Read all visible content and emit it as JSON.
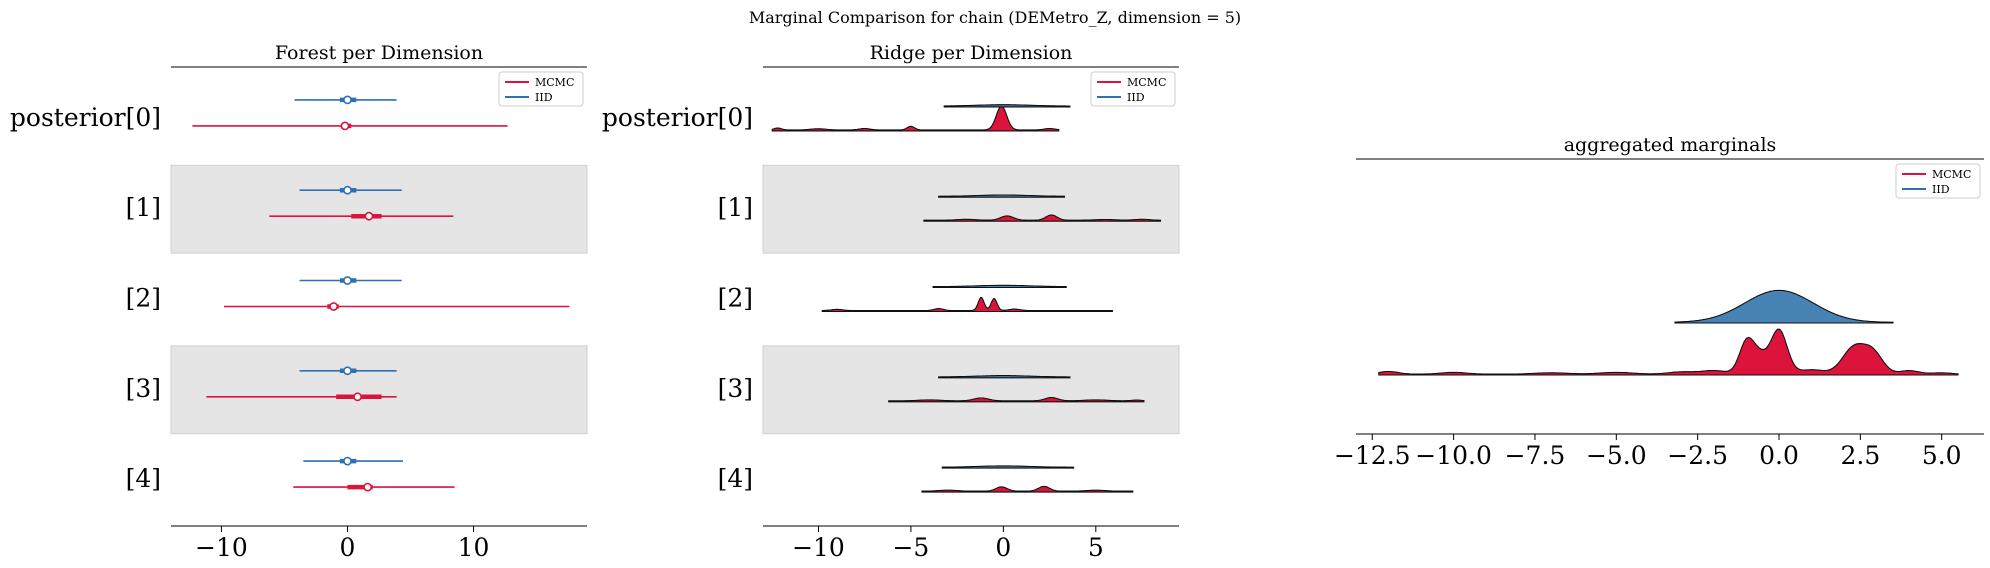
{
  "figure": {
    "suptitle": "Marginal Comparison for chain (DEMetro_Z, dimension = 5)"
  },
  "colors": {
    "mcmc": "#dc143c",
    "iid": "#2f6fb2",
    "iid_fill": "#4682b4",
    "band": "#e5e5e5"
  },
  "legend": {
    "mcmc": "MCMC",
    "iid": "IID"
  },
  "chart_data": [
    {
      "type": "forest",
      "title": "Forest per Dimension",
      "xlim": [
        -14,
        19
      ],
      "xticks": [
        -10,
        0,
        10
      ],
      "xtick_labels": [
        "−10",
        "0",
        "10"
      ],
      "legend_placement": "top-right",
      "labels": [
        "posterior[0]",
        "[1]",
        "[2]",
        "[3]",
        "[4]"
      ],
      "series": [
        {
          "name": "MCMC",
          "rows": [
            {
              "lo": -12.3,
              "q25": -0.5,
              "q75": 0.3,
              "median": -0.2,
              "hi": 12.7
            },
            {
              "lo": -6.2,
              "q25": 0.3,
              "q75": 2.7,
              "median": 1.7,
              "hi": 8.4
            },
            {
              "lo": -9.8,
              "q25": -1.6,
              "q75": -0.7,
              "median": -1.1,
              "hi": 17.6
            },
            {
              "lo": -11.2,
              "q25": -0.9,
              "q75": 2.7,
              "median": 0.8,
              "hi": 3.9
            },
            {
              "lo": -4.3,
              "q25": 0.0,
              "q75": 2.0,
              "median": 1.6,
              "hi": 8.5
            }
          ]
        },
        {
          "name": "IID",
          "rows": [
            {
              "lo": -4.2,
              "q25": -0.6,
              "q75": 0.7,
              "median": 0.0,
              "hi": 3.9
            },
            {
              "lo": -3.8,
              "q25": -0.6,
              "q75": 0.7,
              "median": 0.0,
              "hi": 4.3
            },
            {
              "lo": -3.8,
              "q25": -0.6,
              "q75": 0.7,
              "median": 0.0,
              "hi": 4.3
            },
            {
              "lo": -3.8,
              "q25": -0.6,
              "q75": 0.7,
              "median": 0.0,
              "hi": 3.9
            },
            {
              "lo": -3.5,
              "q25": -0.6,
              "q75": 0.7,
              "median": 0.0,
              "hi": 4.4
            }
          ]
        }
      ]
    },
    {
      "type": "ridge",
      "title": "Ridge per Dimension",
      "xlim": [
        -13,
        9.5
      ],
      "xticks": [
        -10,
        -5,
        0,
        5
      ],
      "xtick_labels": [
        "−10",
        "−5",
        "0",
        "5"
      ],
      "legend_placement": "top-right",
      "labels": [
        "posterior[0]",
        "[1]",
        "[2]",
        "[3]",
        "[4]"
      ],
      "series": [
        {
          "name": "MCMC",
          "rows": [
            {
              "range": [
                -12.5,
                3.0
              ],
              "peaks": [
                [
                  -0.1,
                  1.0,
                  0.28
                ],
                [
                  -5.0,
                  0.15,
                  0.2
                ],
                [
                  -7.5,
                  0.06,
                  0.3
                ],
                [
                  -10.0,
                  0.05,
                  0.4
                ],
                [
                  -12.2,
                  0.08,
                  0.2
                ],
                [
                  2.5,
                  0.06,
                  0.3
                ]
              ]
            },
            {
              "range": [
                -4.3,
                8.5
              ],
              "peaks": [
                [
                  0.2,
                  0.18,
                  0.35
                ],
                [
                  2.6,
                  0.22,
                  0.3
                ],
                [
                  -2.0,
                  0.04,
                  0.5
                ],
                [
                  5.5,
                  0.03,
                  0.6
                ],
                [
                  7.5,
                  0.04,
                  0.4
                ]
              ]
            },
            {
              "range": [
                -9.8,
                5.9
              ],
              "peaks": [
                [
                  -1.2,
                  0.55,
                  0.16
                ],
                [
                  -0.5,
                  0.5,
                  0.16
                ],
                [
                  -3.5,
                  0.08,
                  0.25
                ],
                [
                  0.6,
                  0.06,
                  0.3
                ],
                [
                  -9.0,
                  0.05,
                  0.3
                ]
              ]
            },
            {
              "range": [
                -6.2,
                7.6
              ],
              "peaks": [
                [
                  -1.2,
                  0.12,
                  0.4
                ],
                [
                  2.6,
                  0.14,
                  0.35
                ],
                [
                  -4.0,
                  0.04,
                  0.6
                ],
                [
                  5.0,
                  0.04,
                  0.6
                ],
                [
                  7.2,
                  0.03,
                  0.3
                ]
              ]
            },
            {
              "range": [
                -4.4,
                7.0
              ],
              "peaks": [
                [
                  -0.1,
                  0.18,
                  0.3
                ],
                [
                  2.2,
                  0.2,
                  0.3
                ],
                [
                  -3.0,
                  0.04,
                  0.5
                ],
                [
                  5.0,
                  0.04,
                  0.5
                ]
              ]
            }
          ]
        },
        {
          "name": "IID",
          "rows": [
            {
              "range": [
                -3.2,
                3.6
              ],
              "peaks": [
                [
                  0.0,
                  0.06,
                  1.4
                ]
              ]
            },
            {
              "range": [
                -3.5,
                3.3
              ],
              "peaks": [
                [
                  0.0,
                  0.06,
                  1.4
                ]
              ]
            },
            {
              "range": [
                -3.8,
                3.4
              ],
              "peaks": [
                [
                  0.0,
                  0.06,
                  1.4
                ]
              ]
            },
            {
              "range": [
                -3.5,
                3.6
              ],
              "peaks": [
                [
                  0.0,
                  0.06,
                  1.4
                ]
              ]
            },
            {
              "range": [
                -3.3,
                3.8
              ],
              "peaks": [
                [
                  0.0,
                  0.06,
                  1.4
                ]
              ]
            }
          ]
        }
      ]
    },
    {
      "type": "ridge",
      "title": "aggregated marginals",
      "xlim": [
        -13,
        6.3
      ],
      "xticks": [
        -12.5,
        -10.0,
        -7.5,
        -5.0,
        -2.5,
        0.0,
        2.5,
        5.0
      ],
      "xtick_labels": [
        "−12.5",
        "−10.0",
        "−7.5",
        "−5.0",
        "−2.5",
        "0.0",
        "2.5",
        "5.0"
      ],
      "legend_placement": "top-right",
      "labels": [],
      "series": [
        {
          "name": "MCMC",
          "rows": [
            {
              "range": [
                -12.3,
                5.5
              ],
              "peaks": [
                [
                  0.0,
                  1.0,
                  0.25
                ],
                [
                  -1.0,
                  0.7,
                  0.22
                ],
                [
                  -0.6,
                  0.4,
                  0.25
                ],
                [
                  2.3,
                  0.6,
                  0.35
                ],
                [
                  2.9,
                  0.45,
                  0.3
                ],
                [
                  -2.0,
                  0.08,
                  0.4
                ],
                [
                  1.0,
                  0.1,
                  0.4
                ],
                [
                  4.0,
                  0.08,
                  0.3
                ],
                [
                  -12.0,
                  0.06,
                  0.3
                ],
                [
                  -10.0,
                  0.04,
                  0.4
                ],
                [
                  -7.0,
                  0.03,
                  0.5
                ],
                [
                  -5.0,
                  0.04,
                  0.5
                ],
                [
                  -3.0,
                  0.05,
                  0.4
                ],
                [
                  5.0,
                  0.03,
                  0.3
                ]
              ]
            }
          ]
        },
        {
          "name": "IID",
          "rows": [
            {
              "range": [
                -3.2,
                3.5
              ],
              "peaks": [
                [
                  0.0,
                  1.0,
                  1.05
                ]
              ]
            }
          ]
        }
      ]
    }
  ]
}
